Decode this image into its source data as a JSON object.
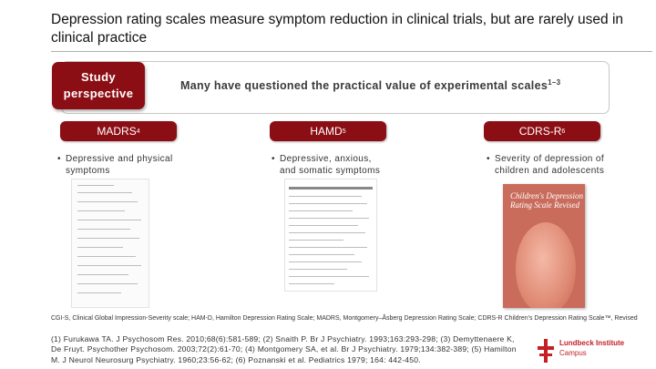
{
  "title": "Depression rating scales measure symptom reduction in clinical trials, but are rarely used in clinical practice",
  "perspective": {
    "label": "Study perspective"
  },
  "banner": {
    "text": "Many have questioned the practical value of experimental scales",
    "sup": "1–3"
  },
  "columns": [
    {
      "head": "MADRS",
      "sup": "4",
      "bullet": "Depressive and physical symptoms"
    },
    {
      "head": "HAMD",
      "sup": "5",
      "bullet": "Depressive, anxious, and somatic symptoms"
    },
    {
      "head": "CDRS-R",
      "sup": "6",
      "bullet": "Severity of depression of children and adolescents"
    }
  ],
  "cover": {
    "title": "Children's Depression Rating Scale Revised"
  },
  "footnote": "CGI-S, Clinical Global Impression-Severity scale; HAM-D, Hamilton Depression Rating Scale; MADRS, Montgomery–Åsberg Depression Rating Scale; CDRS-R Children's Depression Rating Scale™, Revised",
  "references": "(1) Furukawa TA. J Psychosom Res. 2010;68(6):581-589; (2) Snaith P. Br J Psychiatry. 1993;163:293-298; (3) Demyttenaere K, De Fruyt. Psychother Psychosom. 2003;72(2):61-70; (4) Montgomery SA, et al. Br J Psychiatry. 1979;134:382-389; (5) Hamilton M. J Neurol Neurosurg Psychiatry. 1960;23:56-62; (6) Poznanski et al. Pediatrics 1979; 164: 442-450.",
  "logo": {
    "name": "Lundbeck Institute",
    "sub": "Campus"
  },
  "colors": {
    "accent": "#8b0e14",
    "logo": "#c42026"
  }
}
